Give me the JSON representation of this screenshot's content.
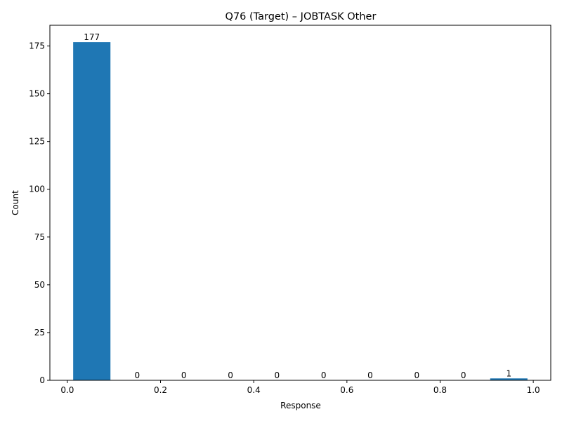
{
  "chart_data": {
    "type": "bar",
    "title": "Q76 (Target) – JOBTASK Other",
    "xlabel": "Response",
    "ylabel": "Count",
    "bars": [
      {
        "x_start": 0.0125,
        "x_end": 0.0925,
        "value": 177,
        "label": "177"
      },
      {
        "x_start": 0.11,
        "x_end": 0.19,
        "value": 0,
        "label": "0"
      },
      {
        "x_start": 0.21,
        "x_end": 0.29,
        "value": 0,
        "label": "0"
      },
      {
        "x_start": 0.31,
        "x_end": 0.39,
        "value": 0,
        "label": "0"
      },
      {
        "x_start": 0.41,
        "x_end": 0.49,
        "value": 0,
        "label": "0"
      },
      {
        "x_start": 0.51,
        "x_end": 0.59,
        "value": 0,
        "label": "0"
      },
      {
        "x_start": 0.61,
        "x_end": 0.69,
        "value": 0,
        "label": "0"
      },
      {
        "x_start": 0.71,
        "x_end": 0.79,
        "value": 0,
        "label": "0"
      },
      {
        "x_start": 0.81,
        "x_end": 0.89,
        "value": 0,
        "label": "0"
      },
      {
        "x_start": 0.9075,
        "x_end": 0.9875,
        "value": 1,
        "label": "1"
      }
    ],
    "xlim": [
      -0.0375,
      1.0375
    ],
    "ylim": [
      0,
      185.85
    ],
    "xticks": [
      0.0,
      0.2,
      0.4,
      0.6,
      0.8,
      1.0
    ],
    "xtick_labels": [
      "0.0",
      "0.2",
      "0.4",
      "0.6",
      "0.8",
      "1.0"
    ],
    "yticks": [
      0,
      25,
      50,
      75,
      100,
      125,
      150,
      175
    ],
    "ytick_labels": [
      "0",
      "25",
      "50",
      "75",
      "100",
      "125",
      "150",
      "175"
    ],
    "grid": false,
    "bar_color": "#1f77b4"
  }
}
